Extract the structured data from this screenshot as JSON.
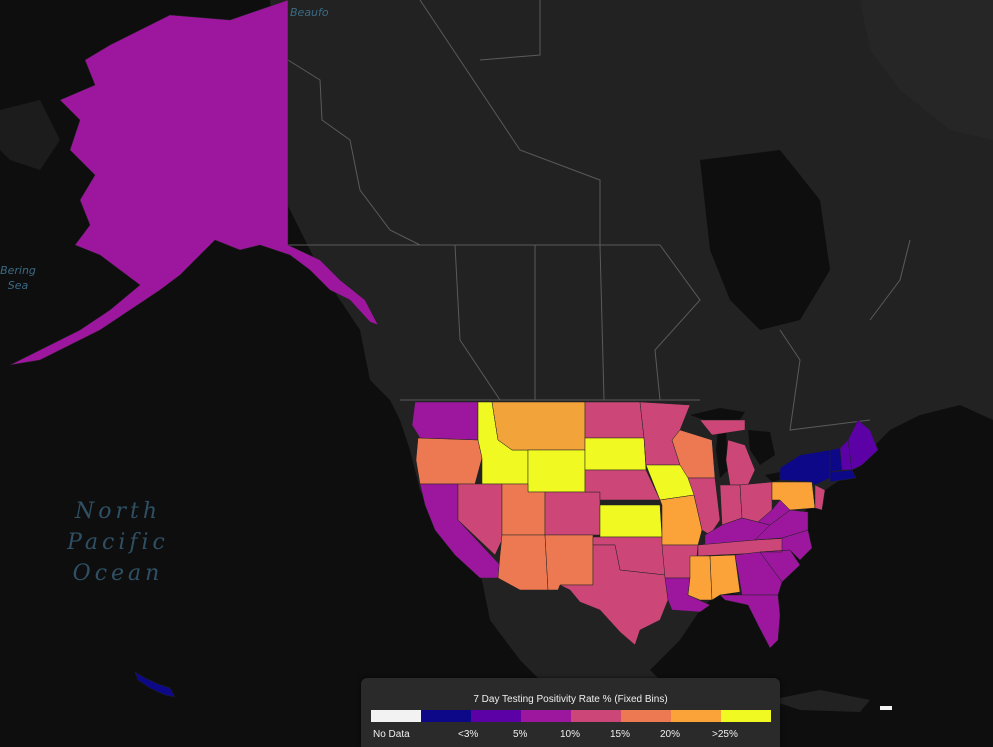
{
  "map": {
    "labels": {
      "ocean_line1": "North",
      "ocean_line2": "Pacific",
      "ocean_line3": "Ocean",
      "bering_line1": "Bering",
      "bering_line2": "Sea",
      "beaufort": "Beaufo"
    },
    "land_color": "#222222",
    "water_color": "#0e0e0e",
    "border_color": "#5a5a5a"
  },
  "legend": {
    "title": "7 Day Testing Positivity Rate % (Fixed Bins)",
    "bins": [
      {
        "label": "No Data",
        "color": "#f2f2f2"
      },
      {
        "label": "<3%",
        "color": "#0d0887"
      },
      {
        "label": "5%",
        "color": "#5c01a6"
      },
      {
        "label": "10%",
        "color": "#9c179e"
      },
      {
        "label": "15%",
        "color": "#cc4778"
      },
      {
        "label": "20%",
        "color": "#ed7953"
      },
      {
        "label": ">25%",
        "color": "#fba238"
      },
      {
        "label": "",
        "color": "#f0f921"
      }
    ]
  },
  "states": {
    "alaska": "#9c179e",
    "washington": "#9c179e",
    "oregon": "#ed7953",
    "california": "#9c179e",
    "idaho": "#f0f921",
    "montana": "#f2a33a",
    "wyoming": "#f0f921",
    "nevada": "#cc4778",
    "utah": "#ed7953",
    "arizona": "#ed7953",
    "colorado": "#cc4778",
    "new_mexico": "#ed7953",
    "north_dakota": "#cc4778",
    "south_dakota": "#f0f921",
    "nebraska": "#cc4778",
    "kansas": "#f0f921",
    "oklahoma": "#cc4778",
    "texas": "#cc4778",
    "minnesota": "#cc4778",
    "iowa": "#f0f921",
    "missouri": "#fba238",
    "arkansas": "#cc4778",
    "louisiana": "#9c179e",
    "wisconsin": "#ed7953",
    "illinois": "#cc4778",
    "michigan": "#cc4778",
    "indiana": "#cc4778",
    "ohio": "#cc4778",
    "kentucky": "#9c179e",
    "tennessee": "#cc4778",
    "mississippi": "#fba238",
    "alabama": "#fba238",
    "georgia": "#9c179e",
    "florida": "#9c179e",
    "south_carolina": "#9c179e",
    "north_carolina": "#9c179e",
    "virginia": "#9c179e",
    "west_virginia": "#9c179e",
    "pennsylvania": "#fba238",
    "new_york": "#0d0887",
    "vermont": "#0d0887",
    "new_hampshire": "#5c01a6",
    "maine": "#5c01a6",
    "new_jersey": "#cc4778",
    "hawaii": "#0d0887"
  }
}
